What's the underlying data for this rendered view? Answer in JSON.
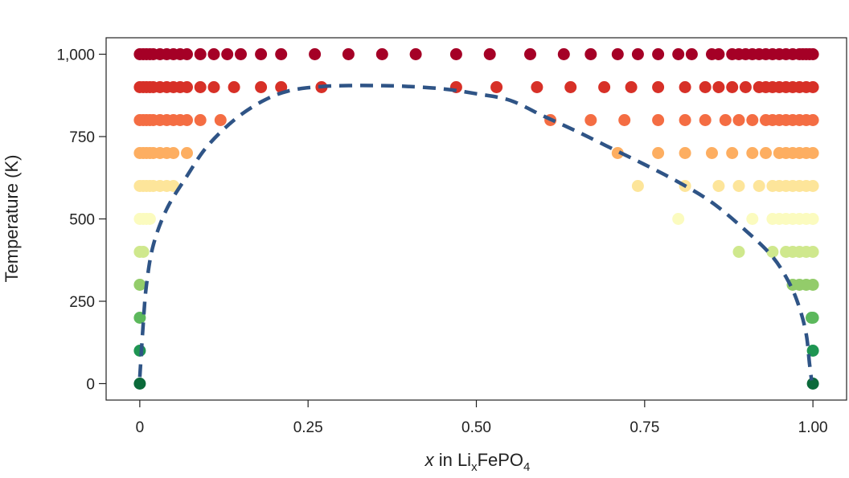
{
  "chart_data": {
    "type": "scatter",
    "title": "",
    "xlabel": {
      "italic": "x",
      "text_before_sub": " in Li",
      "sub1": "x",
      "text_mid": "FePO",
      "sub2": "4"
    },
    "ylabel": "Temperature (K)",
    "xlim": [
      -0.05,
      1.05
    ],
    "ylim": [
      -50,
      1050
    ],
    "x_ticks": [
      {
        "value": 0,
        "label": "0"
      },
      {
        "value": 0.25,
        "label": "0.25"
      },
      {
        "value": 0.5,
        "label": "0.50"
      },
      {
        "value": 0.75,
        "label": "0.75"
      },
      {
        "value": 1.0,
        "label": "1.00"
      }
    ],
    "y_ticks": [
      {
        "value": 0,
        "label": "0"
      },
      {
        "value": 250,
        "label": "250"
      },
      {
        "value": 500,
        "label": "500"
      },
      {
        "value": 750,
        "label": "750"
      },
      {
        "value": 1000,
        "label": "1,000"
      }
    ],
    "grid": false,
    "temperature_colors": {
      "0": "#0b6a3a",
      "100": "#1e9552",
      "200": "#5cb85c",
      "300": "#93cc6a",
      "400": "#cfe88d",
      "500": "#fbfbbf",
      "600": "#fde59a",
      "700": "#fdae61",
      "800": "#f46d43",
      "900": "#d73027",
      "1000": "#a50026"
    },
    "series": [
      {
        "temperature": 0,
        "x": [
          0.0,
          1.0
        ]
      },
      {
        "temperature": 100,
        "x": [
          0.0,
          1.0
        ]
      },
      {
        "temperature": 200,
        "x": [
          0.0,
          0.998,
          1.0
        ]
      },
      {
        "temperature": 300,
        "x": [
          0.0,
          0.97,
          0.98,
          0.99,
          1.0
        ]
      },
      {
        "temperature": 400,
        "x": [
          0.0,
          0.005,
          0.89,
          0.94,
          0.96,
          0.97,
          0.98,
          0.99,
          1.0
        ]
      },
      {
        "temperature": 500,
        "x": [
          0.0,
          0.005,
          0.01,
          0.015,
          0.8,
          0.91,
          0.94,
          0.95,
          0.96,
          0.97,
          0.98,
          0.99,
          1.0
        ]
      },
      {
        "temperature": 600,
        "x": [
          0.0,
          0.005,
          0.01,
          0.015,
          0.02,
          0.03,
          0.04,
          0.05,
          0.74,
          0.81,
          0.86,
          0.89,
          0.92,
          0.94,
          0.95,
          0.96,
          0.97,
          0.98,
          0.99,
          1.0
        ]
      },
      {
        "temperature": 700,
        "x": [
          0.0,
          0.005,
          0.01,
          0.015,
          0.02,
          0.03,
          0.04,
          0.05,
          0.07,
          0.71,
          0.77,
          0.81,
          0.85,
          0.88,
          0.91,
          0.93,
          0.95,
          0.96,
          0.97,
          0.98,
          0.99,
          1.0
        ]
      },
      {
        "temperature": 800,
        "x": [
          0.0,
          0.005,
          0.01,
          0.015,
          0.02,
          0.03,
          0.04,
          0.05,
          0.06,
          0.07,
          0.09,
          0.12,
          0.61,
          0.67,
          0.72,
          0.77,
          0.81,
          0.84,
          0.87,
          0.89,
          0.91,
          0.93,
          0.94,
          0.95,
          0.96,
          0.97,
          0.98,
          0.99,
          1.0
        ]
      },
      {
        "temperature": 900,
        "x": [
          0.0,
          0.005,
          0.01,
          0.015,
          0.02,
          0.03,
          0.04,
          0.05,
          0.06,
          0.07,
          0.09,
          0.11,
          0.14,
          0.18,
          0.21,
          0.27,
          0.47,
          0.53,
          0.59,
          0.64,
          0.69,
          0.73,
          0.77,
          0.81,
          0.84,
          0.86,
          0.88,
          0.9,
          0.92,
          0.93,
          0.94,
          0.95,
          0.96,
          0.97,
          0.98,
          0.99,
          1.0
        ]
      },
      {
        "temperature": 1000,
        "x": [
          0.0,
          0.005,
          0.01,
          0.015,
          0.02,
          0.03,
          0.04,
          0.05,
          0.06,
          0.07,
          0.09,
          0.11,
          0.13,
          0.15,
          0.18,
          0.21,
          0.26,
          0.31,
          0.36,
          0.41,
          0.47,
          0.52,
          0.58,
          0.63,
          0.67,
          0.71,
          0.74,
          0.77,
          0.8,
          0.82,
          0.85,
          0.86,
          0.88,
          0.89,
          0.9,
          0.91,
          0.92,
          0.93,
          0.94,
          0.95,
          0.96,
          0.97,
          0.98,
          0.985,
          0.99,
          0.995,
          1.0
        ]
      }
    ],
    "miscibility_gap": {
      "style": "dashed",
      "color": "#2f5486",
      "points": [
        [
          0.0,
          20
        ],
        [
          0.005,
          180
        ],
        [
          0.01,
          300
        ],
        [
          0.02,
          420
        ],
        [
          0.04,
          530
        ],
        [
          0.07,
          630
        ],
        [
          0.1,
          720
        ],
        [
          0.14,
          800
        ],
        [
          0.18,
          855
        ],
        [
          0.22,
          888
        ],
        [
          0.27,
          902
        ],
        [
          0.33,
          905
        ],
        [
          0.39,
          903
        ],
        [
          0.45,
          895
        ],
        [
          0.5,
          880
        ],
        [
          0.55,
          860
        ],
        [
          0.6,
          812
        ],
        [
          0.65,
          765
        ],
        [
          0.7,
          715
        ],
        [
          0.75,
          665
        ],
        [
          0.8,
          612
        ],
        [
          0.85,
          550
        ],
        [
          0.9,
          465
        ],
        [
          0.94,
          385
        ],
        [
          0.965,
          305
        ],
        [
          0.98,
          230
        ],
        [
          0.99,
          150
        ],
        [
          0.995,
          60
        ],
        [
          0.998,
          10
        ]
      ]
    }
  }
}
